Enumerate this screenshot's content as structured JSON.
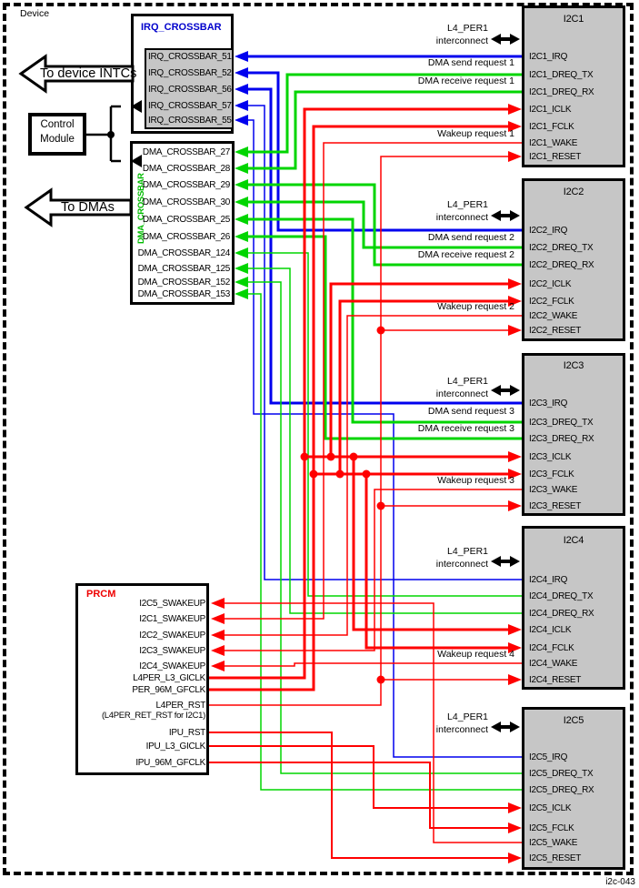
{
  "colors": {
    "wire_irq_blue": "#0000ee",
    "wire_dma_green": "#00d500",
    "wire_clock_red": "#ff0000",
    "block_fill_gray": "#c6c6c6",
    "irq_crossbar_title": "#0000cc",
    "prcm_title": "#ee0000",
    "dma_crossbar_label": "#00bb00",
    "wire_black": "#000000"
  },
  "device_label": "Device",
  "figure_label": "i2c-043",
  "irq_crossbar": {
    "title": "IRQ_CROSSBAR",
    "rows": [
      "IRQ_CROSSBAR_51",
      "IRQ_CROSSBAR_52",
      "IRQ_CROSSBAR_56",
      "IRQ_CROSSBAR_57",
      "IRQ_CROSSBAR_55"
    ]
  },
  "dma_crossbar": {
    "side_label": "DMA_CROSSBAR",
    "rows": [
      "DMA_CROSSBAR_27",
      "DMA_CROSSBAR_28",
      "DMA_CROSSBAR_29",
      "DMA_CROSSBAR_30",
      "DMA_CROSSBAR_25",
      "DMA_CROSSBAR_26",
      "DMA_CROSSBAR_124",
      "DMA_CROSSBAR_125",
      "DMA_CROSSBAR_152",
      "DMA_CROSSBAR_153"
    ]
  },
  "control_module": {
    "line1": "Control",
    "line2": "Module"
  },
  "arrows": {
    "to_intcs": "To device INTCs",
    "to_dmas": "To DMAs"
  },
  "interconnect": {
    "line1": "L4_PER1",
    "line2": "interconnect"
  },
  "prcm": {
    "title": "PRCM",
    "rows": [
      "I2C5_SWAKEUP",
      "I2C1_SWAKEUP",
      "I2C2_SWAKEUP",
      "I2C3_SWAKEUP",
      "I2C4_SWAKEUP",
      "L4PER_L3_GICLK",
      "PER_96M_GFCLK",
      "L4PER_RST",
      "(L4PER_RET_RST for I2C1)",
      "IPU_RST",
      "IPU_L3_GICLK",
      "IPU_96M_GFCLK"
    ]
  },
  "i2c_blocks": [
    {
      "title": "I2C1",
      "ports": [
        "I2C1_IRQ",
        "I2C1_DREQ_TX",
        "I2C1_DREQ_RX",
        "I2C1_ICLK",
        "I2C1_FCLK",
        "I2C1_WAKE",
        "I2C1_RESET"
      ]
    },
    {
      "title": "I2C2",
      "ports": [
        "I2C2_IRQ",
        "I2C2_DREQ_TX",
        "I2C2_DREQ_RX",
        "I2C2_ICLK",
        "I2C2_FCLK",
        "I2C2_WAKE",
        "I2C2_RESET"
      ]
    },
    {
      "title": "I2C3",
      "ports": [
        "I2C3_IRQ",
        "I2C3_DREQ_TX",
        "I2C3_DREQ_RX",
        "I2C3_ICLK",
        "I2C3_FCLK",
        "I2C3_WAKE",
        "I2C3_RESET"
      ]
    },
    {
      "title": "I2C4",
      "ports": [
        "I2C4_IRQ",
        "I2C4_DREQ_TX",
        "I2C4_DREQ_RX",
        "I2C4_ICLK",
        "I2C4_FCLK",
        "I2C4_WAKE",
        "I2C4_RESET"
      ]
    },
    {
      "title": "I2C5",
      "ports": [
        "I2C5_IRQ",
        "I2C5_DREQ_TX",
        "I2C5_DREQ_RX",
        "I2C5_ICLK",
        "I2C5_FCLK",
        "I2C5_WAKE",
        "I2C5_RESET"
      ]
    }
  ],
  "wire_labels": {
    "dma_send_1": "DMA send request 1",
    "dma_receive_1": "DMA receive request 1",
    "wakeup_1": "Wakeup request 1",
    "dma_send_2": "DMA send request 2",
    "dma_receive_2": "DMA receive request 2",
    "wakeup_2": "Wakeup request 2",
    "dma_send_3": "DMA send request 3",
    "dma_receive_3": "DMA receive request 3",
    "wakeup_3": "Wakeup request 3",
    "wakeup_4": "Wakeup request 4"
  }
}
